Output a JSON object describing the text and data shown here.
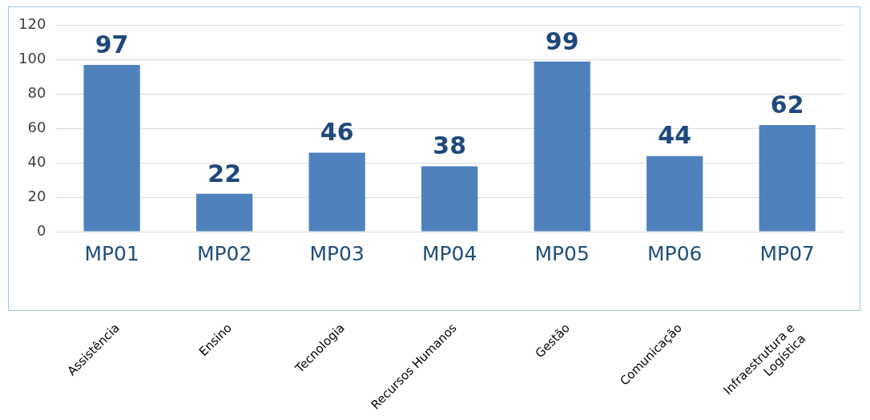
{
  "chart_data": {
    "type": "bar",
    "categories": [
      "MP01",
      "MP02",
      "MP03",
      "MP04",
      "MP05",
      "MP06",
      "MP07"
    ],
    "values": [
      97,
      22,
      46,
      38,
      99,
      44,
      62
    ],
    "color": "#4f81bd",
    "ylim": [
      0,
      120
    ],
    "yticks": [
      0,
      20,
      40,
      60,
      80,
      100,
      120
    ],
    "grid": "y",
    "data_labels": true,
    "annotations": [
      "Assistência",
      "Ensino",
      "Tecnologia",
      "Recursos Humanos",
      "Gestão",
      "Comunicação",
      "Infraestrutura e Logística"
    ]
  }
}
